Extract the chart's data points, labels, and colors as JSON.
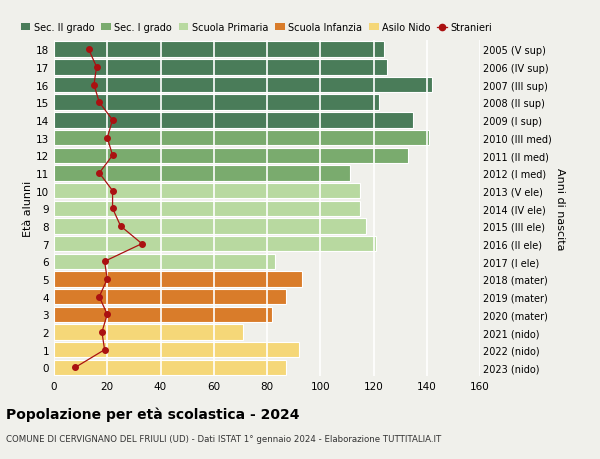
{
  "ages": [
    18,
    17,
    16,
    15,
    14,
    13,
    12,
    11,
    10,
    9,
    8,
    7,
    6,
    5,
    4,
    3,
    2,
    1,
    0
  ],
  "right_labels": [
    "2005 (V sup)",
    "2006 (IV sup)",
    "2007 (III sup)",
    "2008 (II sup)",
    "2009 (I sup)",
    "2010 (III med)",
    "2011 (II med)",
    "2012 (I med)",
    "2013 (V ele)",
    "2014 (IV ele)",
    "2015 (III ele)",
    "2016 (II ele)",
    "2017 (I ele)",
    "2018 (mater)",
    "2019 (mater)",
    "2020 (mater)",
    "2021 (nido)",
    "2022 (nido)",
    "2023 (nido)"
  ],
  "bar_values": [
    124,
    125,
    142,
    122,
    135,
    141,
    133,
    111,
    115,
    115,
    117,
    121,
    83,
    93,
    87,
    82,
    71,
    92,
    87
  ],
  "bar_colors": [
    "#4a7c59",
    "#4a7c59",
    "#4a7c59",
    "#4a7c59",
    "#4a7c59",
    "#7aab6e",
    "#7aab6e",
    "#7aab6e",
    "#b8d9a0",
    "#b8d9a0",
    "#b8d9a0",
    "#b8d9a0",
    "#b8d9a0",
    "#d97c2a",
    "#d97c2a",
    "#d97c2a",
    "#f5d778",
    "#f5d778",
    "#f5d778"
  ],
  "stranieri_values": [
    13,
    16,
    15,
    17,
    22,
    20,
    22,
    17,
    22,
    22,
    25,
    33,
    19,
    20,
    17,
    20,
    18,
    19,
    8
  ],
  "legend_labels": [
    "Sec. II grado",
    "Sec. I grado",
    "Scuola Primaria",
    "Scuola Infanzia",
    "Asilo Nido",
    "Stranieri"
  ],
  "legend_colors": [
    "#4a7c59",
    "#7aab6e",
    "#b8d9a0",
    "#d97c2a",
    "#f5d778",
    "#aa1111"
  ],
  "title": "Popolazione per età scolastica - 2024",
  "subtitle": "COMUNE DI CERVIGNANO DEL FRIULI (UD) - Dati ISTAT 1° gennaio 2024 - Elaborazione TUTTITALIA.IT",
  "ylabel_left": "Età alunni",
  "ylabel_right": "Anni di nascita",
  "xlim": [
    0,
    160
  ],
  "xticks": [
    0,
    20,
    40,
    60,
    80,
    100,
    120,
    140,
    160
  ],
  "bg_color": "#f0f0eb",
  "plot_bg_color": "#f0f0eb",
  "grid_color": "#ffffff",
  "bar_edge_color": "#ffffff",
  "stranieri_color": "#aa1111"
}
